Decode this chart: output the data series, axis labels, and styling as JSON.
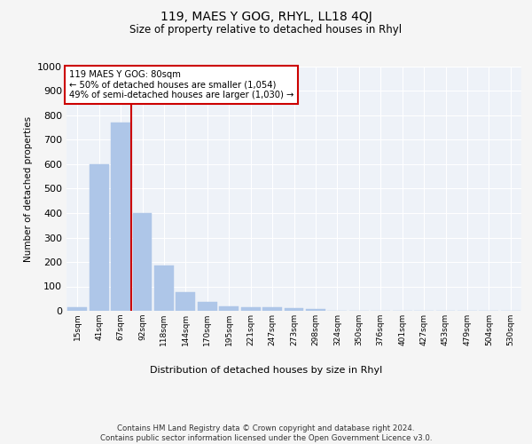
{
  "title1": "119, MAES Y GOG, RHYL, LL18 4QJ",
  "title2": "Size of property relative to detached houses in Rhyl",
  "xlabel": "Distribution of detached houses by size in Rhyl",
  "ylabel": "Number of detached properties",
  "categories": [
    "15sqm",
    "41sqm",
    "67sqm",
    "92sqm",
    "118sqm",
    "144sqm",
    "170sqm",
    "195sqm",
    "221sqm",
    "247sqm",
    "273sqm",
    "298sqm",
    "324sqm",
    "350sqm",
    "376sqm",
    "401sqm",
    "427sqm",
    "453sqm",
    "479sqm",
    "504sqm",
    "530sqm"
  ],
  "values": [
    13,
    601,
    771,
    400,
    186,
    78,
    38,
    18,
    13,
    13,
    10,
    7,
    0,
    0,
    0,
    0,
    0,
    0,
    0,
    0,
    0
  ],
  "bar_color": "#aec6e8",
  "bar_edge_color": "#aec6e8",
  "vline_color": "#cc0000",
  "annotation_text": "119 MAES Y GOG: 80sqm\n← 50% of detached houses are smaller (1,054)\n49% of semi-detached houses are larger (1,030) →",
  "annotation_box_color": "#ffffff",
  "annotation_box_edge_color": "#cc0000",
  "ylim": [
    0,
    1000
  ],
  "yticks": [
    0,
    100,
    200,
    300,
    400,
    500,
    600,
    700,
    800,
    900,
    1000
  ],
  "bg_color": "#eef2f8",
  "grid_color": "#ffffff",
  "fig_bg_color": "#f5f5f5",
  "footer": "Contains HM Land Registry data © Crown copyright and database right 2024.\nContains public sector information licensed under the Open Government Licence v3.0."
}
